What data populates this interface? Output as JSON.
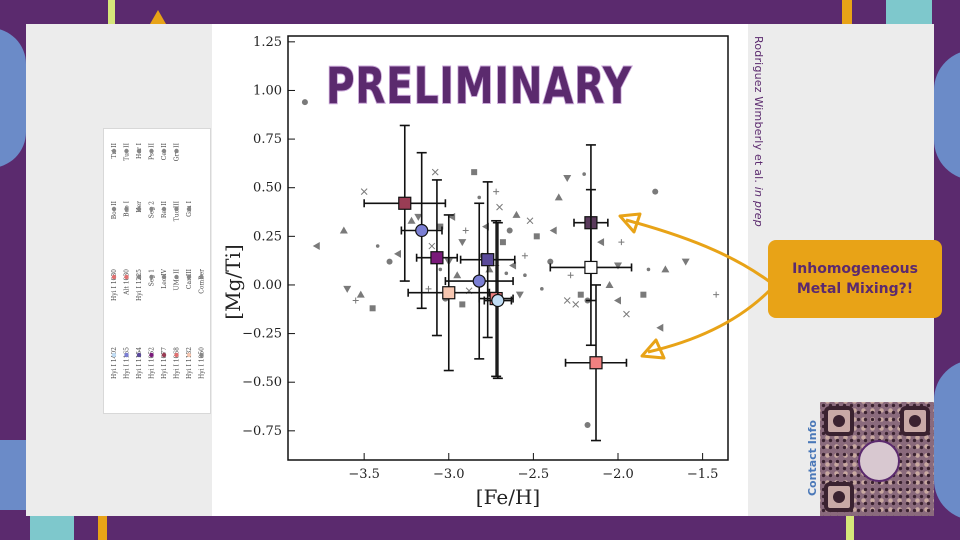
{
  "slide": {
    "overlay_text": "PRELIMINARY",
    "author_note_prefix": "Rodriguez Wimberly et al. ",
    "author_note_emph": "in prep",
    "callout_text": "Inhomogeneous Metal Mixing?!",
    "qr_label": "Contact Info",
    "colors": {
      "background": "#5b2a6e",
      "accent": "#e8a317",
      "panel": "#ececec"
    }
  },
  "legend": {
    "columns": [
      [
        "Tri II",
        "Tuc II",
        "Hor I",
        "Psc II",
        "Cet II",
        "Gru II"
      ],
      [
        "Boo II",
        "Boo I",
        "Her",
        "Seg 2",
        "Ret II",
        "Tuc III",
        "Gru I"
      ],
      [
        "Hyi I 1030",
        "Alt 1030",
        "Hyi I 1225",
        "Seg 1",
        "Leo IV",
        "UMa II",
        "Car III",
        "ComBer"
      ],
      [
        "Hyi I 1402",
        "Hyi I 1165",
        "Hyi I 1154",
        "Hyi I 1052",
        "Hyi I 1077",
        "Hyi I 1068",
        "Hyi I 1182",
        "Hyi I 1050"
      ]
    ]
  },
  "chart_data": {
    "type": "scatter",
    "xlabel": "[Fe/H]",
    "ylabel": "[Mg/Ti]",
    "xlim": [
      -3.95,
      -1.35
    ],
    "ylim": [
      -0.9,
      1.28
    ],
    "xticks": [
      "−3.5",
      "−3.0",
      "−2.5",
      "−2.0",
      "−1.5"
    ],
    "xtick_values": [
      -3.5,
      -3.0,
      -2.5,
      -2.0,
      -1.5
    ],
    "yticks": [
      "−0.75",
      "−0.50",
      "−0.25",
      "0.00",
      "0.25",
      "0.50",
      "0.75",
      "1.00",
      "1.25"
    ],
    "ytick_values": [
      -0.75,
      -0.5,
      -0.25,
      0.0,
      0.25,
      0.5,
      0.75,
      1.0,
      1.25
    ],
    "grid": false,
    "background_stars": [
      [
        -3.85,
        0.94
      ],
      [
        -3.78,
        0.2
      ],
      [
        -3.62,
        0.28
      ],
      [
        -3.6,
        -0.02
      ],
      [
        -3.55,
        -0.08
      ],
      [
        -3.5,
        0.48
      ],
      [
        -3.45,
        -0.12
      ],
      [
        -3.42,
        0.2
      ],
      [
        -3.35,
        0.12
      ],
      [
        -3.3,
        0.16
      ],
      [
        -3.22,
        0.33
      ],
      [
        -3.18,
        0.35
      ],
      [
        -3.12,
        -0.02
      ],
      [
        -3.1,
        0.2
      ],
      [
        -3.05,
        0.3
      ],
      [
        -3.05,
        0.08
      ],
      [
        -3.02,
        -0.07
      ],
      [
        -2.98,
        0.35
      ],
      [
        -2.95,
        0.05
      ],
      [
        -2.92,
        0.22
      ],
      [
        -2.9,
        0.28
      ],
      [
        -2.88,
        -0.03
      ],
      [
        -2.85,
        0.58
      ],
      [
        -2.82,
        0.45
      ],
      [
        -2.8,
        0.15
      ],
      [
        -2.78,
        0.3
      ],
      [
        -2.76,
        0.08
      ],
      [
        -2.74,
        -0.05
      ],
      [
        -2.72,
        0.48
      ],
      [
        -2.7,
        0.4
      ],
      [
        -2.68,
        0.22
      ],
      [
        -2.66,
        0.06
      ],
      [
        -2.64,
        0.28
      ],
      [
        -2.62,
        0.1
      ],
      [
        -2.6,
        0.36
      ],
      [
        -2.58,
        -0.05
      ],
      [
        -2.55,
        0.15
      ],
      [
        -2.52,
        0.33
      ],
      [
        -2.48,
        0.25
      ],
      [
        -2.45,
        -0.02
      ],
      [
        -2.4,
        0.12
      ],
      [
        -2.38,
        0.28
      ],
      [
        -2.35,
        0.45
      ],
      [
        -2.3,
        0.55
      ],
      [
        -2.28,
        0.05
      ],
      [
        -2.25,
        -0.1
      ],
      [
        -2.22,
        -0.05
      ],
      [
        -2.2,
        0.57
      ],
      [
        -2.18,
        -0.08
      ],
      [
        -2.1,
        0.22
      ],
      [
        -2.05,
        0.0
      ],
      [
        -2.0,
        0.1
      ],
      [
        -1.98,
        0.22
      ],
      [
        -1.95,
        -0.15
      ],
      [
        -1.85,
        -0.05
      ],
      [
        -1.82,
        0.08
      ],
      [
        -1.78,
        0.48
      ],
      [
        -1.75,
        -0.22
      ],
      [
        -1.72,
        0.08
      ],
      [
        -1.6,
        0.12
      ],
      [
        -1.42,
        -0.05
      ],
      [
        -3.08,
        0.58
      ],
      [
        -2.92,
        -0.1
      ],
      [
        -2.55,
        0.05
      ],
      [
        -2.18,
        -0.72
      ],
      [
        -2.0,
        -0.08
      ],
      [
        -3.52,
        -0.05
      ],
      [
        -3.0,
        0.12
      ],
      [
        -2.72,
        0.1
      ],
      [
        -2.3,
        -0.08
      ]
    ],
    "series": [
      {
        "x": -3.26,
        "y": 0.42,
        "xerr": 0.24,
        "yerr": 0.4,
        "color": "#9a3d55",
        "marker": "square"
      },
      {
        "x": -3.16,
        "y": 0.28,
        "xerr": 0.12,
        "yerr": 0.4,
        "color": "#7b7fd4",
        "marker": "circle"
      },
      {
        "x": -3.07,
        "y": 0.14,
        "xerr": 0.12,
        "yerr": 0.4,
        "color": "#7a1a7a",
        "marker": "square"
      },
      {
        "x": -3.0,
        "y": -0.04,
        "xerr": 0.24,
        "yerr": 0.4,
        "color": "#f6c6b0",
        "marker": "square"
      },
      {
        "x": -2.82,
        "y": 0.02,
        "xerr": 0.2,
        "yerr": 0.4,
        "color": "#7b7fd4",
        "marker": "circle"
      },
      {
        "x": -2.77,
        "y": 0.13,
        "xerr": 0.16,
        "yerr": 0.4,
        "color": "#5a4a9a",
        "marker": "square"
      },
      {
        "x": -2.72,
        "y": -0.07,
        "xerr": 0.1,
        "yerr": 0.4,
        "color": "#f08080",
        "marker": "square"
      },
      {
        "x": -2.71,
        "y": -0.08,
        "xerr": 0.08,
        "yerr": 0.4,
        "color": "#c0dcf4",
        "marker": "circle"
      },
      {
        "x": -2.16,
        "y": 0.32,
        "xerr": 0.1,
        "yerr": 0.4,
        "color": "#5a3a5c",
        "marker": "square"
      },
      {
        "x": -2.16,
        "y": 0.09,
        "xerr": 0.24,
        "yerr": 0.4,
        "color": "#ffffff",
        "marker": "square"
      },
      {
        "x": -2.13,
        "y": -0.4,
        "xerr": 0.18,
        "yerr": 0.4,
        "color": "#f08080",
        "marker": "square"
      }
    ]
  }
}
